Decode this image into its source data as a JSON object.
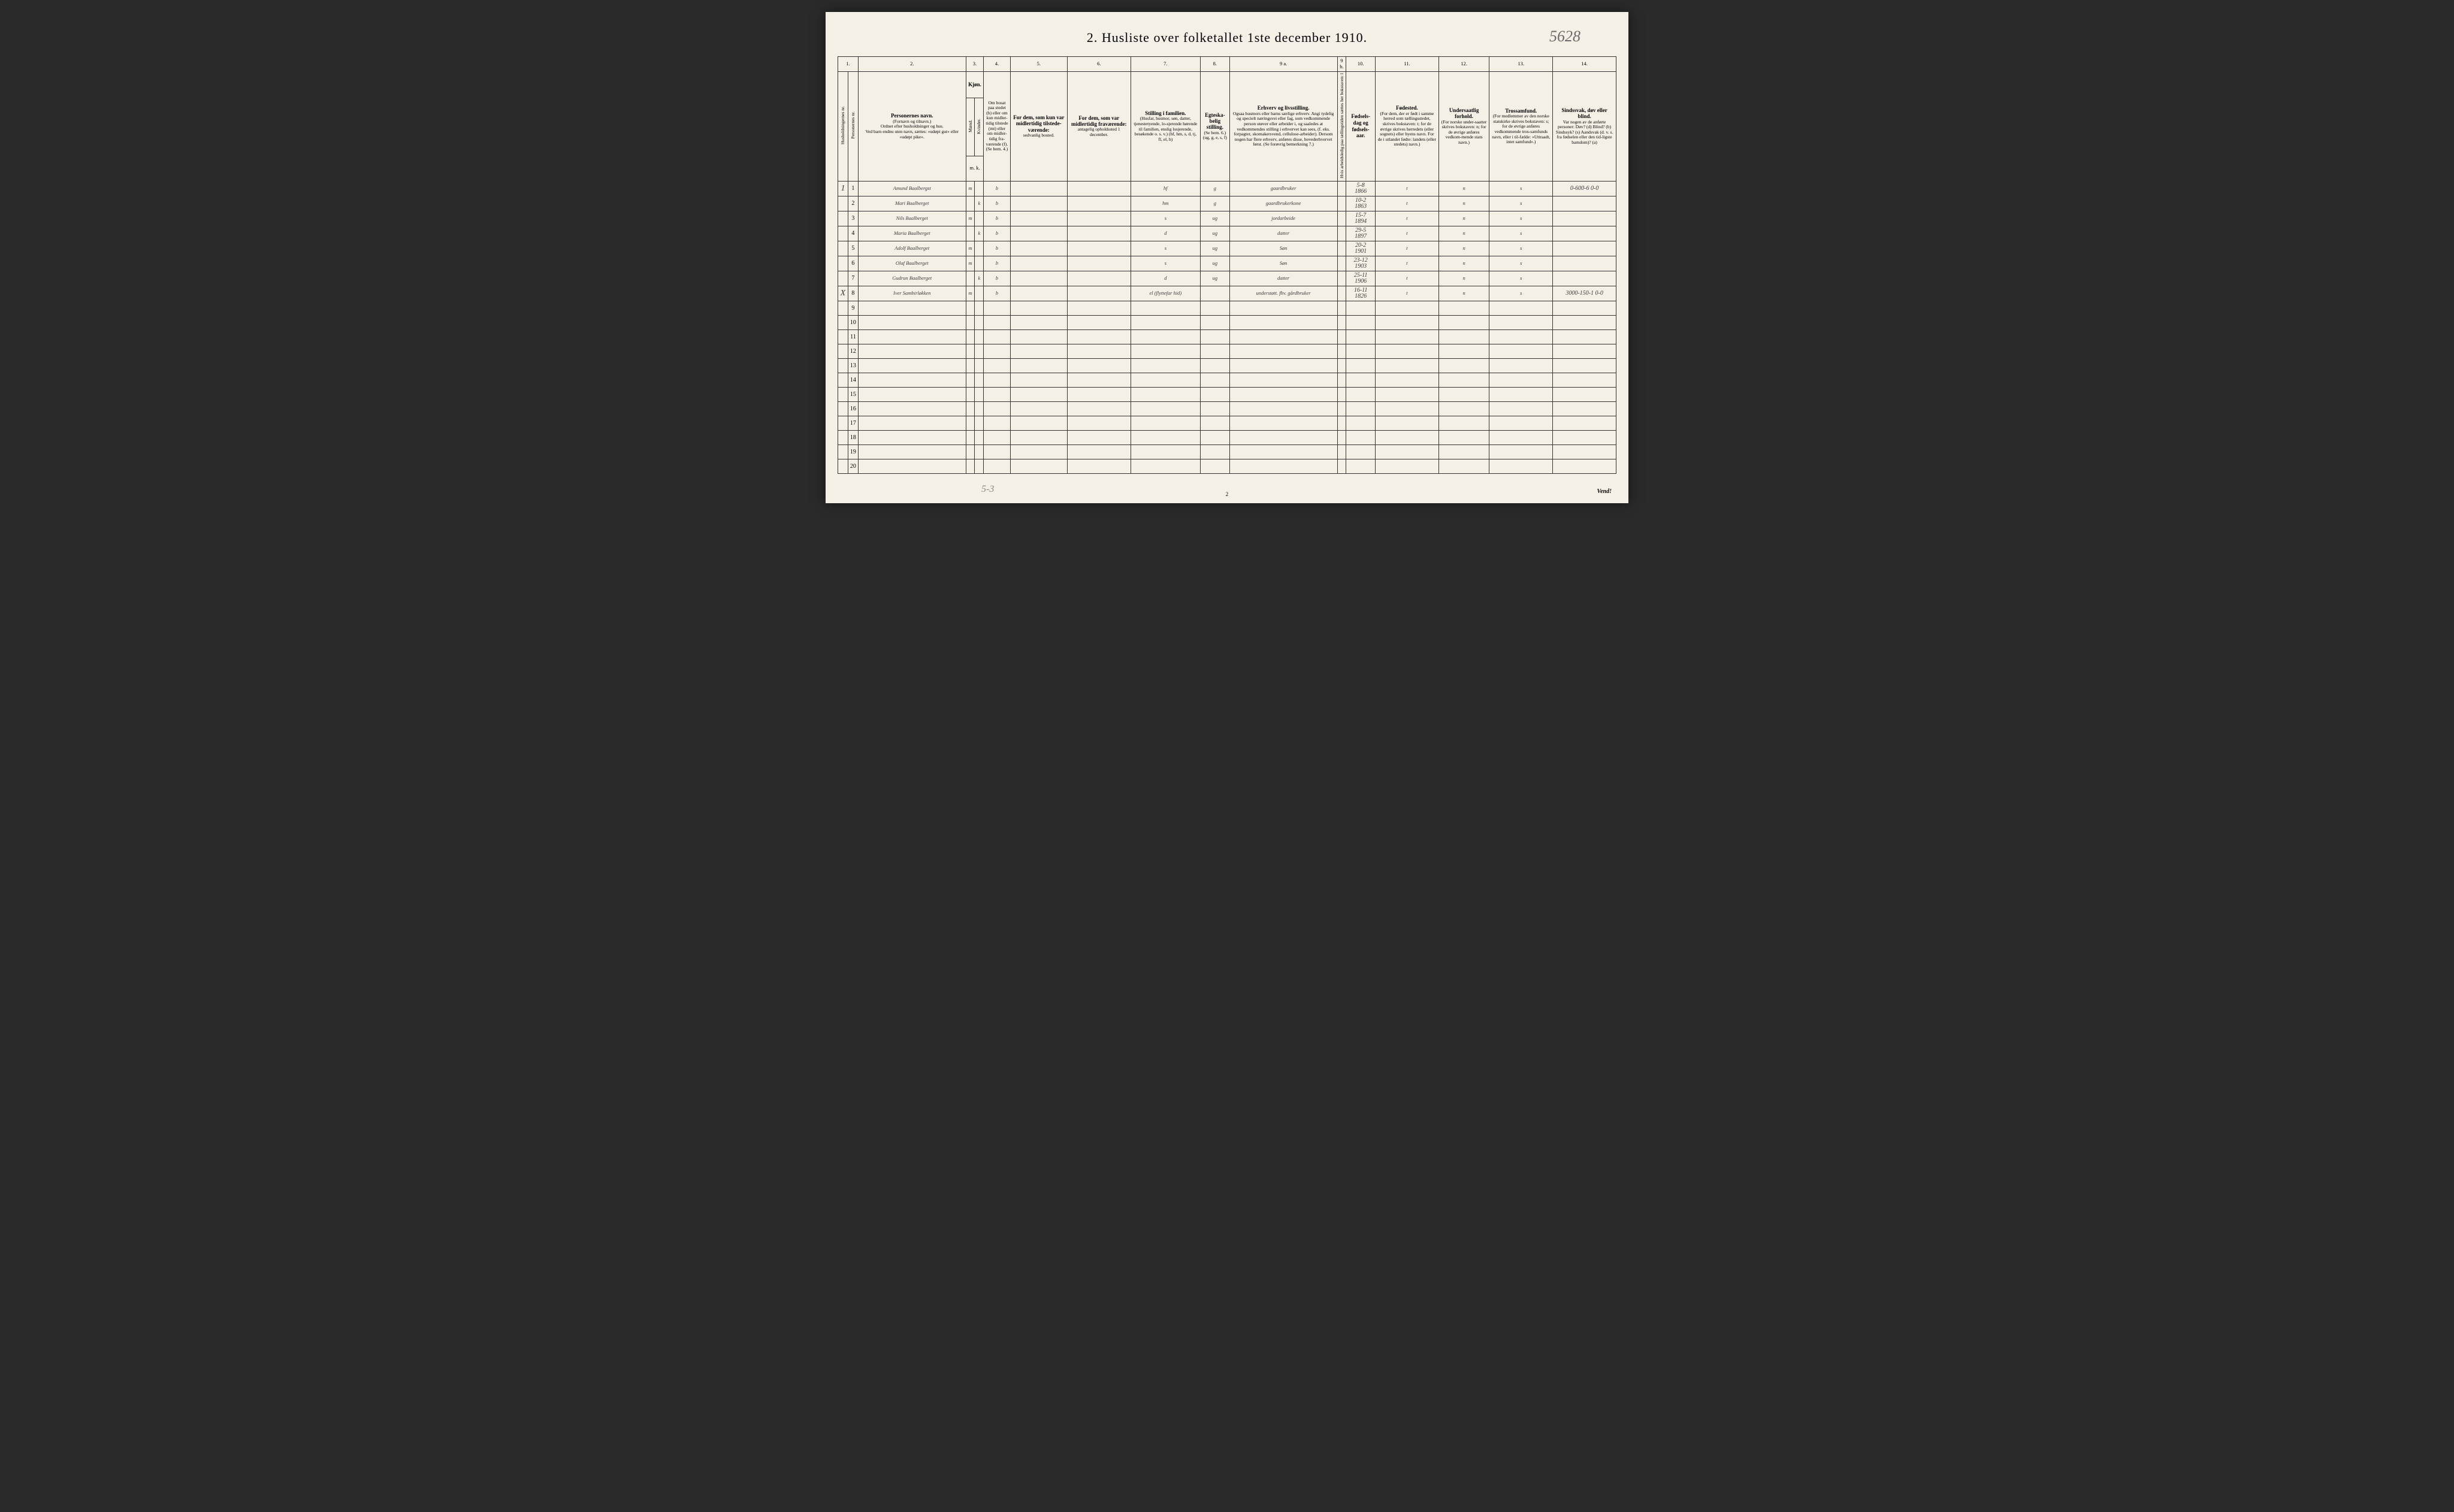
{
  "title": "2.  Husliste over folketallet 1ste december 1910.",
  "top_annotation": "5628",
  "footer_note": "Vend!",
  "page_number": "2",
  "bottom_annotation": "5-3",
  "colnums": [
    "1.",
    "2.",
    "3.",
    "4.",
    "5.",
    "6.",
    "7.",
    "8.",
    "9 a.",
    "9 b.",
    "10.",
    "11.",
    "12.",
    "13.",
    "14."
  ],
  "headers": {
    "c1a": "Husholdningernes nr.",
    "c1b": "Personernes nr.",
    "c2_main": "Personernes navn.",
    "c2_sub1": "(Fornavn og tilnavn.)",
    "c2_sub2": "Ordnet efter husholdninger og hus.",
    "c2_sub3": "Ved barn endnu uten navn, sættes: «udøpt gut» eller «udøpt pike».",
    "c3_main": "Kjøn.",
    "c3a": "Mænd.",
    "c3b": "Kvinder.",
    "c3_foot": "m.   k.",
    "c4_main": "Om bosat paa stedet (b) eller om kun midler-tidig tilstede (mt) eller om midler-tidig fra-værende (f).",
    "c4_sub": "(Se bem. 4.)",
    "c5_main": "For dem, som kun var midlertidig tilstede-værende:",
    "c5_sub": "sedvanlig bosted.",
    "c6_main": "For dem, som var midlertidig fraværende:",
    "c6_sub": "antagelig opholdssted 1 december.",
    "c7_main": "Stilling i familien.",
    "c7_sub": "(Husfar, husmor, søn, datter, tjenestetyende, lo-sjerende hørende til familien, enslig losjerende, besøkende o. s. v.) (hf, hm, s, d, tj, fl, el, b)",
    "c8_main": "Egteska-belig stilling.",
    "c8_sub": "(Se bem. 6.) (ug, g, e, s, f)",
    "c9a_main": "Erhverv og livsstilling.",
    "c9a_sub": "Ogsaa husmors eller barns særlige erhverv. Angi tydelig og specielt næringsvei eller fag, som vedkommende person utøver eller arbeider i, og saaledes at vedkommendes stilling i erhvervet kan sees, (f. eks. forpagter, skomakersvend, cellulose-arbeider). Dersom nogen har flere erhverv, anføres disse, hovederhvervet først. (Se forøvrig bemerkning 7.)",
    "c9b": "Hvis arbeidsledig paa tællingstiden sættes her bokstaven: l",
    "c10_main": "Fødsels-dag og fødsels-aar.",
    "c11_main": "Fødested.",
    "c11_sub": "(For dem, der er født i samme herred som tællingsstedet, skrives bokstaven: t; for de øvrige skrives herredets (eller sognets) eller byens navn. For de i utlandet fødte: landets (eller stedets) navn.)",
    "c12_main": "Undersaatlig forhold.",
    "c12_sub": "(For norske under-saatter skrives bokstaven: n; for de øvrige anføres vedkom-mende stats navn.)",
    "c13_main": "Trossamfund.",
    "c13_sub": "(For medlemmer av den norske statskirke skrives bokstaven: s; for de øvrige anføres vedkommende tros-samfunds navn, eller i til-fælde: «Uttraadt, intet samfund».)",
    "c14_main": "Sindssvak, døv eller blind.",
    "c14_sub": "Var nogen av de anførte personer: Døv? (d) Blind? (b) Sindssyk? (s) Aandsvak (d. v. s. fra fødselen eller den tid-ligste barndom)? (a)"
  },
  "rows": [
    {
      "hh": "1",
      "pn": "1",
      "name": "Amund Baalbergst",
      "sex": "m",
      "res": "b",
      "c7": "hf",
      "c8": "g",
      "c9": "gaardbruker",
      "c10a": "5-8",
      "c10b": "1866",
      "c11": "t",
      "c12": "n",
      "c13": "s",
      "c14": "0-600-6 0-0"
    },
    {
      "hh": "",
      "pn": "2",
      "name": "Mari Baalberget",
      "sex": "k",
      "res": "b",
      "c7": "hm",
      "c8": "g",
      "c9": "gaardbrukerkone",
      "c10a": "10-2",
      "c10b": "1863",
      "c11": "t",
      "c12": "n",
      "c13": "s",
      "c14": ""
    },
    {
      "hh": "",
      "pn": "3",
      "name": "Nils Baalberget",
      "sex": "m",
      "res": "b",
      "c7": "s",
      "c8": "ug",
      "c9": "jordarbeide",
      "c10a": "15-7",
      "c10b": "1894",
      "c11": "t",
      "c12": "n",
      "c13": "s",
      "c14": ""
    },
    {
      "hh": "",
      "pn": "4",
      "name": "Maria Baalberget",
      "sex": "k",
      "res": "b",
      "c7": "d",
      "c8": "ug",
      "c9": "datter",
      "c10a": "29-5",
      "c10b": "1897",
      "c11": "t",
      "c12": "n",
      "c13": "s",
      "c14": ""
    },
    {
      "hh": "",
      "pn": "5",
      "name": "Adolf Baalberget",
      "sex": "m",
      "res": "b",
      "c7": "s",
      "c8": "ug",
      "c9": "Søn",
      "c10a": "20-2",
      "c10b": "1901",
      "c11": "t",
      "c12": "n",
      "c13": "s",
      "c14": ""
    },
    {
      "hh": "",
      "pn": "6",
      "name": "Olaf Baalberget",
      "sex": "m",
      "res": "b",
      "c7": "s",
      "c8": "ug",
      "c9": "Søn",
      "c10a": "23-12",
      "c10b": "1903",
      "c11": "t",
      "c12": "n",
      "c13": "s",
      "c14": ""
    },
    {
      "hh": "",
      "pn": "7",
      "name": "Gudrun Baalberget",
      "sex": "k",
      "res": "b",
      "c7": "d",
      "c8": "ug",
      "c9": "datter",
      "c10a": "25-11",
      "c10b": "1906",
      "c11": "t",
      "c12": "n",
      "c13": "s",
      "c14": ""
    },
    {
      "hh": "X",
      "pn": "8",
      "name": "Iver Sambirløkken",
      "sex": "m",
      "res": "b",
      "c7": "el (flyttefar hid)",
      "c8": "",
      "c9": "understøtt. fhv. gårdbruker",
      "c10a": "16-11",
      "c10b": "1826",
      "c11": "t",
      "c12": "n",
      "c13": "s",
      "c14": "3000-150-1 0-0"
    }
  ],
  "empty_rows": [
    "9",
    "10",
    "11",
    "12",
    "13",
    "14",
    "15",
    "16",
    "17",
    "18",
    "19",
    "20"
  ],
  "colwidths": {
    "c1a": 16,
    "c1b": 16,
    "c2": 170,
    "c3a": 14,
    "c3b": 14,
    "c4": 42,
    "c5": 90,
    "c6": 100,
    "c7": 110,
    "c8": 46,
    "c9a": 170,
    "c9b": 14,
    "c10": 46,
    "c11": 100,
    "c12": 80,
    "c13": 100,
    "c14": 100
  },
  "colors": {
    "page_bg": "#f4f0e6",
    "outer_bg": "#2a2a2a",
    "border": "#333333",
    "ink_handwriting": "#3a3a3a",
    "ink_pencil": "#888888"
  }
}
